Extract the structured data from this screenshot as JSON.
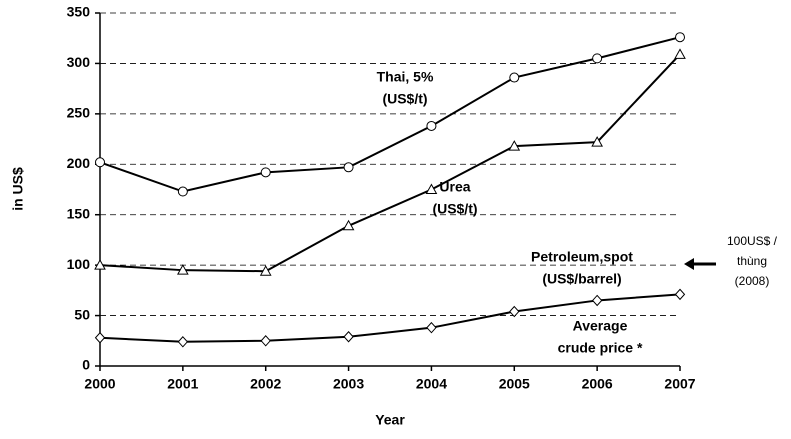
{
  "chart_data": {
    "type": "line",
    "x": [
      2000,
      2001,
      2002,
      2003,
      2004,
      2005,
      2006,
      2007
    ],
    "xlim": [
      2000,
      2007
    ],
    "xticks": [
      2000,
      2001,
      2002,
      2003,
      2004,
      2005,
      2006,
      2007
    ],
    "ylim": [
      0,
      350
    ],
    "yticks": [
      0,
      50,
      100,
      150,
      200,
      250,
      300,
      350
    ],
    "grid": true,
    "x_label": "Year",
    "y_label": "in US$",
    "series": [
      {
        "name": "Thai, 5%",
        "unit": "(US$/t)",
        "marker": "circle",
        "color": "#000000",
        "values": [
          202,
          173,
          192,
          197,
          238,
          286,
          305,
          326
        ]
      },
      {
        "name": "Urea",
        "unit": "(US$/t)",
        "marker": "triangle",
        "color": "#000000",
        "values": [
          100,
          95,
          94,
          139,
          175,
          218,
          222,
          309
        ]
      },
      {
        "name": "Average",
        "unit": "crude price *",
        "marker": "diamond",
        "color": "#000000",
        "values": [
          28,
          24,
          25,
          29,
          38,
          54,
          65,
          71
        ]
      }
    ],
    "annotations": [
      {
        "lines": [
          "Petroleum,spot",
          "(US$/barrel)"
        ]
      },
      {
        "lines": [
          "100US$ /",
          "thùng",
          "(2008)"
        ]
      }
    ]
  }
}
